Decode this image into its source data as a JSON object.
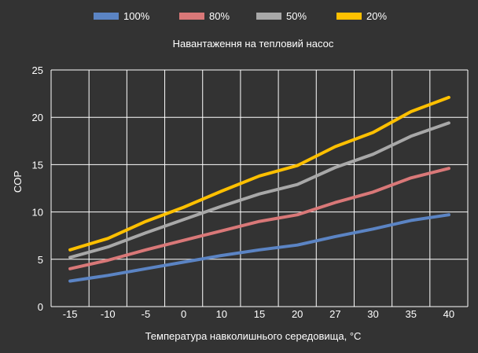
{
  "chart_data": {
    "type": "line",
    "subtitle": "Навантаження на тепловий насос",
    "xlabel": "Температура навколишнього середовища, °C",
    "ylabel": "COP",
    "x_tick_labels": [
      "-15",
      "-10",
      "-5",
      "0",
      "10",
      "15",
      "20",
      "27",
      "30",
      "35",
      "40"
    ],
    "y_ticks": [
      0,
      5,
      10,
      15,
      20,
      25
    ],
    "ylim": [
      0,
      25
    ],
    "grid": true,
    "legend_position": "top",
    "series": [
      {
        "name": "100%",
        "color": "#5b84c4",
        "values": [
          2.7,
          3.3,
          4.0,
          4.7,
          5.4,
          6.0,
          6.5,
          7.4,
          8.2,
          9.1,
          9.7
        ]
      },
      {
        "name": "80%",
        "color": "#d97878",
        "values": [
          4.0,
          4.9,
          6.0,
          7.0,
          8.0,
          9.0,
          9.7,
          11.0,
          12.1,
          13.6,
          14.6
        ]
      },
      {
        "name": "50%",
        "color": "#a8a8a8",
        "values": [
          5.2,
          6.3,
          7.8,
          9.2,
          10.6,
          11.9,
          12.9,
          14.7,
          16.1,
          18.0,
          19.4
        ]
      },
      {
        "name": "20%",
        "color": "#ffc000",
        "values": [
          6.0,
          7.2,
          9.0,
          10.5,
          12.2,
          13.8,
          14.9,
          16.9,
          18.4,
          20.6,
          22.1
        ]
      }
    ]
  },
  "colors": {
    "background": "#333333",
    "grid": "#ffffff",
    "text": "#ffffff"
  }
}
